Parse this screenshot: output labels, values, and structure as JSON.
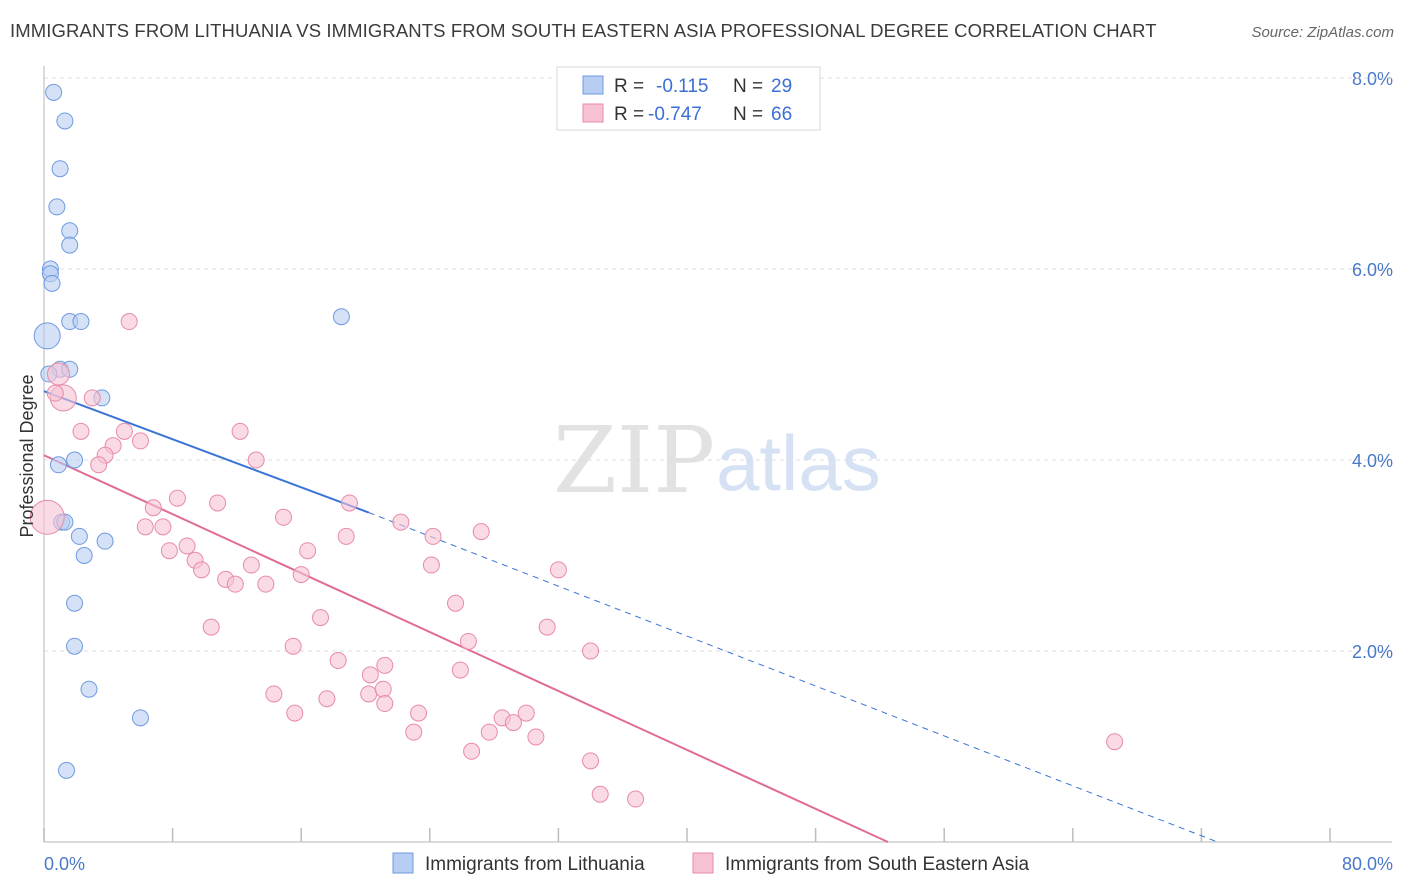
{
  "title": "IMMIGRANTS FROM LITHUANIA VS IMMIGRANTS FROM SOUTH EASTERN ASIA PROFESSIONAL DEGREE CORRELATION CHART",
  "source": "Source: ZipAtlas.com",
  "watermark": {
    "zip": "ZIP",
    "atlas": "atlas"
  },
  "colors": {
    "blue_fill": "#b7cdf2",
    "blue_stroke": "#6f9ae0",
    "blue_line": "#3b74d6",
    "pink_fill": "#f7c3d3",
    "pink_stroke": "#e88aa8",
    "pink_line": "#e06b97",
    "grid": "#dcdcdc",
    "tick_text": "#4a78c8"
  },
  "legend": {
    "rows": [
      {
        "r_label": "R =",
        "r_value": "-0.115",
        "n_label": "N =",
        "n_value": "29"
      },
      {
        "r_label": "R =",
        "r_value": "-0.747",
        "n_label": "N =",
        "n_value": "66"
      }
    ]
  },
  "chart_data": {
    "type": "scatter",
    "title": "IMMIGRANTS FROM LITHUANIA VS IMMIGRANTS FROM SOUTH EASTERN ASIA PROFESSIONAL DEGREE CORRELATION CHART",
    "xlabel": "",
    "ylabel": "Professional Degree",
    "xlim": [
      0,
      80
    ],
    "ylim": [
      0,
      8.0
    ],
    "x_tick_labels": [
      "0.0%",
      "80.0%"
    ],
    "y_tick_labels": [
      "2.0%",
      "4.0%",
      "6.0%",
      "8.0%"
    ],
    "y_ticks": [
      2,
      4,
      6,
      8
    ],
    "grid": true,
    "legend_position": "top-center",
    "series": [
      {
        "name": "Immigrants from Lithuania",
        "color": "#b7cdf2",
        "points": [
          [
            0.6,
            7.85
          ],
          [
            1.3,
            7.55
          ],
          [
            1.0,
            7.05
          ],
          [
            0.8,
            6.65
          ],
          [
            1.6,
            6.4
          ],
          [
            1.6,
            6.25
          ],
          [
            0.4,
            6.0
          ],
          [
            0.4,
            5.95
          ],
          [
            0.5,
            5.85
          ],
          [
            1.6,
            5.45
          ],
          [
            2.3,
            5.45
          ],
          [
            18.5,
            5.5
          ],
          [
            0.2,
            5.3
          ],
          [
            1.0,
            4.95
          ],
          [
            1.6,
            4.95
          ],
          [
            3.6,
            4.65
          ],
          [
            0.9,
            3.95
          ],
          [
            1.9,
            4.0
          ],
          [
            1.1,
            3.35
          ],
          [
            1.3,
            3.35
          ],
          [
            2.2,
            3.2
          ],
          [
            3.8,
            3.15
          ],
          [
            2.5,
            3.0
          ],
          [
            1.9,
            2.5
          ],
          [
            1.9,
            2.05
          ],
          [
            2.8,
            1.6
          ],
          [
            6.0,
            1.3
          ],
          [
            1.4,
            0.75
          ],
          [
            0.3,
            4.9
          ]
        ],
        "trend": {
          "x_start": 0,
          "y_start": 4.72,
          "x_solid_end": 20.2,
          "y_solid_end": 3.45,
          "x_dash_end": 73,
          "y_dash_end": 0
        }
      },
      {
        "name": "Immigrants from South Eastern Asia",
        "color": "#f7c3d3",
        "points": [
          [
            0.9,
            4.9
          ],
          [
            1.2,
            4.65
          ],
          [
            3.0,
            4.65
          ],
          [
            2.3,
            4.3
          ],
          [
            5.0,
            4.3
          ],
          [
            6.0,
            4.2
          ],
          [
            4.3,
            4.15
          ],
          [
            3.8,
            4.05
          ],
          [
            3.4,
            3.95
          ],
          [
            12.2,
            4.3
          ],
          [
            13.2,
            4.0
          ],
          [
            5.3,
            5.45
          ],
          [
            0.2,
            3.4
          ],
          [
            6.8,
            3.5
          ],
          [
            8.3,
            3.6
          ],
          [
            10.8,
            3.55
          ],
          [
            14.9,
            3.4
          ],
          [
            19.0,
            3.55
          ],
          [
            22.2,
            3.35
          ],
          [
            6.3,
            3.3
          ],
          [
            7.4,
            3.3
          ],
          [
            7.8,
            3.05
          ],
          [
            8.9,
            3.1
          ],
          [
            9.4,
            2.95
          ],
          [
            9.8,
            2.85
          ],
          [
            11.3,
            2.75
          ],
          [
            11.9,
            2.7
          ],
          [
            12.9,
            2.9
          ],
          [
            13.8,
            2.7
          ],
          [
            16.4,
            3.05
          ],
          [
            16.0,
            2.8
          ],
          [
            18.8,
            3.2
          ],
          [
            24.2,
            3.2
          ],
          [
            27.2,
            3.25
          ],
          [
            32.0,
            2.85
          ],
          [
            24.1,
            2.9
          ],
          [
            25.6,
            2.5
          ],
          [
            17.2,
            2.35
          ],
          [
            10.4,
            2.25
          ],
          [
            15.5,
            2.05
          ],
          [
            26.4,
            2.1
          ],
          [
            31.3,
            2.25
          ],
          [
            34.0,
            2.0
          ],
          [
            18.3,
            1.9
          ],
          [
            21.2,
            1.85
          ],
          [
            25.9,
            1.8
          ],
          [
            20.3,
            1.75
          ],
          [
            14.3,
            1.55
          ],
          [
            20.2,
            1.55
          ],
          [
            21.1,
            1.6
          ],
          [
            17.6,
            1.5
          ],
          [
            15.6,
            1.35
          ],
          [
            21.2,
            1.45
          ],
          [
            23.3,
            1.35
          ],
          [
            28.5,
            1.3
          ],
          [
            29.2,
            1.25
          ],
          [
            30.0,
            1.35
          ],
          [
            23.0,
            1.15
          ],
          [
            27.7,
            1.15
          ],
          [
            30.6,
            1.1
          ],
          [
            26.6,
            0.95
          ],
          [
            34.0,
            0.85
          ],
          [
            34.6,
            0.5
          ],
          [
            36.8,
            0.45
          ],
          [
            66.6,
            1.05
          ],
          [
            0.7,
            4.7
          ]
        ],
        "trend": {
          "x_start": 0,
          "y_start": 4.05,
          "x_end": 52.5,
          "y_end": 0
        }
      }
    ]
  }
}
